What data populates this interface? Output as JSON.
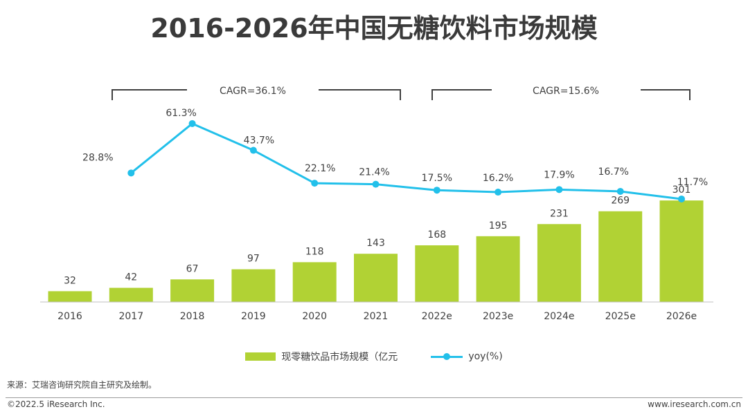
{
  "title": "2016-2026年中国无糖饮料市场规模",
  "colors": {
    "bar": "#b1d234",
    "line": "#22c0ea",
    "bracket": "#404040"
  },
  "chart_data": {
    "type": "bar+line",
    "categories": [
      "2016",
      "2017",
      "2018",
      "2019",
      "2020",
      "2021",
      "2022e",
      "2023e",
      "2024e",
      "2025e",
      "2026e"
    ],
    "series": [
      {
        "name": "现零糖饮品市场规模（亿元",
        "type": "bar",
        "values": [
          32,
          42,
          67,
          97,
          118,
          143,
          168,
          195,
          231,
          269,
          301
        ]
      },
      {
        "name": "yoy(%)",
        "type": "line",
        "values": [
          null,
          28.8,
          61.3,
          43.7,
          22.1,
          21.4,
          17.5,
          16.2,
          17.9,
          16.7,
          11.7
        ],
        "labels": [
          null,
          "28.8%",
          "61.3%",
          "43.7%",
          "22.1%",
          "21.4%",
          "17.5%",
          "16.2%",
          "17.9%",
          "16.7%",
          "11.7%"
        ]
      }
    ],
    "annotations": [
      {
        "text": "CAGR=36.1%",
        "from": "2017",
        "to": "2021"
      },
      {
        "text": "CAGR=15.6%",
        "from": "2022e",
        "to": "2026e"
      }
    ],
    "legend_position": "bottom-center"
  },
  "legend": {
    "bar_label": "现零糖饮品市场规模（亿元",
    "line_label": "yoy(%)"
  },
  "source": "来源：艾瑞咨询研究院自主研究及绘制。",
  "footer": {
    "copyright": "©2022.5 iResearch Inc.",
    "website": "www.iresearch.com.cn"
  }
}
